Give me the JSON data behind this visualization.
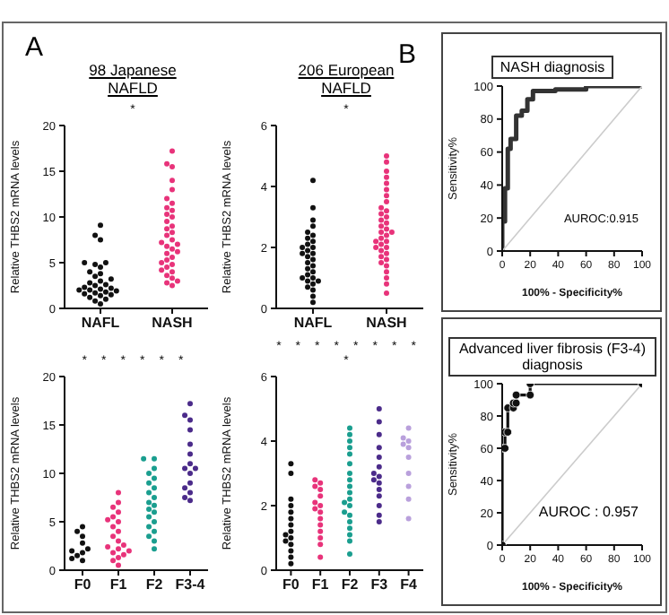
{
  "chart_data": [
    {
      "type": "scatter",
      "title": "98 Japanese NAFLD",
      "categories": [
        "NAFL",
        "NASH"
      ],
      "ylabel": "Relative THBS2 mRNA levels",
      "ylim": [
        0,
        20
      ],
      "yticks": [
        0,
        5,
        10,
        15,
        20
      ],
      "marker": "circle",
      "annotations": [
        "A",
        "*"
      ],
      "series": [
        {
          "color": "#111111",
          "x": [
            "NAFL",
            "NAFL",
            "NAFL",
            "NAFL",
            "NAFL",
            "NAFL",
            "NAFL",
            "NAFL",
            "NAFL",
            "NAFL",
            "NAFL",
            "NAFL",
            "NAFL",
            "NAFL",
            "NAFL",
            "NAFL",
            "NAFL",
            "NAFL",
            "NAFL",
            "NAFL",
            "NAFL",
            "NAFL",
            "NAFL",
            "NAFL",
            "NAFL",
            "NAFL",
            "NAFL",
            "NAFL",
            "NAFL",
            "NAFL"
          ],
          "values": [
            0.5,
            0.8,
            1,
            1.2,
            1.4,
            1.5,
            1.6,
            1.7,
            1.8,
            1.9,
            2,
            2,
            2.1,
            2.2,
            2.3,
            2.5,
            2.6,
            2.8,
            3,
            3.2,
            3.5,
            3.8,
            4,
            4.5,
            4.8,
            5,
            5,
            7.5,
            8,
            9.1
          ]
        },
        {
          "color": "#e8337a",
          "x": [
            "NASH",
            "NASH",
            "NASH",
            "NASH",
            "NASH",
            "NASH",
            "NASH",
            "NASH",
            "NASH",
            "NASH",
            "NASH",
            "NASH",
            "NASH",
            "NASH",
            "NASH",
            "NASH",
            "NASH",
            "NASH",
            "NASH",
            "NASH",
            "NASH",
            "NASH",
            "NASH",
            "NASH",
            "NASH",
            "NASH",
            "NASH",
            "NASH",
            "NASH",
            "NASH",
            "NASH",
            "NASH",
            "NASH",
            "NASH",
            "NASH"
          ],
          "values": [
            2.5,
            2.8,
            3,
            3.3,
            3.6,
            4,
            4.2,
            4.5,
            4.8,
            5,
            5.3,
            5.6,
            6,
            6.2,
            6.5,
            6.8,
            7,
            7.2,
            7.5,
            8,
            8.3,
            8.7,
            9,
            9.5,
            10,
            10.3,
            10.7,
            11,
            11.5,
            12,
            13,
            14,
            15.5,
            15.8,
            17.2
          ]
        }
      ]
    },
    {
      "type": "scatter",
      "title": "206 European NAFLD",
      "categories": [
        "NAFL",
        "NASH"
      ],
      "ylabel": "Relative THBS2 mRNA levels",
      "ylim": [
        0,
        6
      ],
      "yticks": [
        0,
        2,
        4,
        6
      ],
      "marker": "circle",
      "annotations": [
        "*"
      ],
      "series": [
        {
          "color": "#111111",
          "x": [
            "NAFL",
            "NAFL",
            "NAFL",
            "NAFL",
            "NAFL",
            "NAFL",
            "NAFL",
            "NAFL",
            "NAFL",
            "NAFL",
            "NAFL",
            "NAFL",
            "NAFL",
            "NAFL",
            "NAFL",
            "NAFL",
            "NAFL",
            "NAFL",
            "NAFL",
            "NAFL",
            "NAFL",
            "NAFL",
            "NAFL",
            "NAFL",
            "NAFL",
            "NAFL",
            "NAFL",
            "NAFL",
            "NAFL",
            "NAFL"
          ],
          "values": [
            0.2,
            0.4,
            0.6,
            0.7,
            0.8,
            0.9,
            0.9,
            1,
            1,
            1.1,
            1.2,
            1.3,
            1.4,
            1.5,
            1.6,
            1.7,
            1.8,
            1.8,
            1.9,
            2,
            2,
            2.1,
            2.2,
            2.3,
            2.4,
            2.5,
            2.7,
            2.9,
            3.3,
            4.2
          ]
        },
        {
          "color": "#e8337a",
          "x": [
            "NASH",
            "NASH",
            "NASH",
            "NASH",
            "NASH",
            "NASH",
            "NASH",
            "NASH",
            "NASH",
            "NASH",
            "NASH",
            "NASH",
            "NASH",
            "NASH",
            "NASH",
            "NASH",
            "NASH",
            "NASH",
            "NASH",
            "NASH",
            "NASH",
            "NASH",
            "NASH",
            "NASH",
            "NASH",
            "NASH",
            "NASH",
            "NASH",
            "NASH",
            "NASH",
            "NASH",
            "NASH",
            "NASH",
            "NASH",
            "NASH"
          ],
          "values": [
            0.5,
            0.8,
            1,
            1.2,
            1.4,
            1.5,
            1.6,
            1.7,
            1.8,
            1.9,
            2,
            2,
            2.1,
            2.2,
            2.2,
            2.3,
            2.4,
            2.5,
            2.5,
            2.6,
            2.7,
            2.8,
            2.9,
            3,
            3.1,
            3.2,
            3.3,
            3.5,
            3.7,
            3.9,
            4.1,
            4.3,
            4.5,
            4.8,
            5
          ]
        }
      ]
    },
    {
      "type": "scatter",
      "categories": [
        "F0",
        "F1",
        "F2",
        "F3-4"
      ],
      "ylabel": "Relative THBS2 mRNA levels",
      "ylim": [
        0,
        20
      ],
      "yticks": [
        0,
        5,
        10,
        15,
        20
      ],
      "marker": "circle",
      "annotations": [
        "*",
        "*",
        "*",
        "*",
        "*",
        "*"
      ],
      "series": [
        {
          "color": "#111111",
          "x": [
            "F0",
            "F0",
            "F0",
            "F0",
            "F0",
            "F0",
            "F0",
            "F0",
            "F0",
            "F0"
          ],
          "values": [
            1,
            1.2,
            1.5,
            1.8,
            2,
            2.2,
            2.8,
            3.5,
            4,
            4.5
          ]
        },
        {
          "color": "#e8337a",
          "x": [
            "F1",
            "F1",
            "F1",
            "F1",
            "F1",
            "F1",
            "F1",
            "F1",
            "F1",
            "F1",
            "F1",
            "F1",
            "F1",
            "F1",
            "F1",
            "F1",
            "F1",
            "F1",
            "F1",
            "F1"
          ],
          "values": [
            0.5,
            1,
            1.3,
            1.6,
            1.8,
            2,
            2.2,
            2.4,
            2.6,
            3,
            3.5,
            4,
            4.5,
            5,
            5.2,
            5.5,
            6,
            6.5,
            7,
            8
          ]
        },
        {
          "color": "#1a9e8f",
          "x": [
            "F2",
            "F2",
            "F2",
            "F2",
            "F2",
            "F2",
            "F2",
            "F2",
            "F2",
            "F2",
            "F2",
            "F2",
            "F2",
            "F2",
            "F2",
            "F2",
            "F2",
            "F2",
            "F2",
            "F2"
          ],
          "values": [
            2.2,
            3,
            3.5,
            4,
            4.5,
            5,
            5.5,
            6,
            6.3,
            6.7,
            7,
            7.5,
            8,
            8.5,
            9,
            9.5,
            10,
            10.5,
            11.5,
            11.5
          ]
        },
        {
          "color": "#4b2b8a",
          "x": [
            "F3-4",
            "F3-4",
            "F3-4",
            "F3-4",
            "F3-4",
            "F3-4",
            "F3-4",
            "F3-4",
            "F3-4",
            "F3-4",
            "F3-4",
            "F3-4",
            "F3-4",
            "F3-4",
            "F3-4"
          ],
          "values": [
            7.2,
            7.5,
            8,
            8.5,
            9,
            10,
            10.5,
            10.5,
            11,
            12,
            13,
            14.5,
            15.5,
            16,
            17.2
          ]
        }
      ]
    },
    {
      "type": "scatter",
      "categories": [
        "F0",
        "F1",
        "F2",
        "F3",
        "F4"
      ],
      "ylabel": "Relative THBS2 mRNA levels",
      "ylim": [
        0,
        6
      ],
      "yticks": [
        0,
        2,
        4,
        6
      ],
      "marker": "circle",
      "annotations": [
        "*",
        "*",
        "*",
        "*",
        "*",
        "*",
        "*",
        "*",
        "*"
      ],
      "series": [
        {
          "color": "#111111",
          "x": [
            "F0",
            "F0",
            "F0",
            "F0",
            "F0",
            "F0",
            "F0",
            "F0",
            "F0",
            "F0",
            "F0",
            "F0",
            "F0",
            "F0",
            "F0"
          ],
          "values": [
            0.2,
            0.4,
            0.6,
            0.8,
            0.9,
            1,
            1.1,
            1.2,
            1.4,
            1.6,
            1.8,
            2,
            2.2,
            3,
            3.3
          ]
        },
        {
          "color": "#e8337a",
          "x": [
            "F1",
            "F1",
            "F1",
            "F1",
            "F1",
            "F1",
            "F1",
            "F1",
            "F1",
            "F1",
            "F1",
            "F1",
            "F1",
            "F1",
            "F1"
          ],
          "values": [
            0.4,
            0.8,
            1,
            1.2,
            1.4,
            1.6,
            1.8,
            1.9,
            2,
            2.1,
            2.3,
            2.5,
            2.6,
            2.7,
            2.8
          ]
        },
        {
          "color": "#1a9e8f",
          "x": [
            "F2",
            "F2",
            "F2",
            "F2",
            "F2",
            "F2",
            "F2",
            "F2",
            "F2",
            "F2",
            "F2",
            "F2",
            "F2",
            "F2",
            "F2",
            "F2",
            "F2",
            "F2",
            "F2",
            "F2"
          ],
          "values": [
            0.5,
            0.9,
            1.1,
            1.3,
            1.5,
            1.7,
            1.8,
            2,
            2.1,
            2.2,
            2.4,
            2.6,
            2.8,
            3,
            3.3,
            3.6,
            3.8,
            4,
            4.2,
            4.4
          ]
        },
        {
          "color": "#4b2b8a",
          "x": [
            "F3",
            "F3",
            "F3",
            "F3",
            "F3",
            "F3",
            "F3",
            "F3",
            "F3",
            "F3",
            "F3",
            "F3",
            "F3",
            "F3",
            "F3"
          ],
          "values": [
            1.5,
            1.7,
            2,
            2.3,
            2.5,
            2.7,
            2.8,
            2.9,
            3,
            3.2,
            3.5,
            3.8,
            4.2,
            4.6,
            5
          ]
        },
        {
          "color": "#b9a0dc",
          "x": [
            "F4",
            "F4",
            "F4",
            "F4",
            "F4",
            "F4",
            "F4",
            "F4",
            "F4",
            "F4"
          ],
          "values": [
            1.6,
            2.2,
            2.6,
            3,
            3.5,
            3.8,
            3.9,
            4,
            4.1,
            4.4
          ]
        }
      ]
    },
    {
      "type": "line",
      "title": "NASH diagnosis",
      "xlabel": "100% - Specificity%",
      "ylabel": "Sensitivity%",
      "xlim": [
        0,
        100
      ],
      "ylim": [
        0,
        100
      ],
      "xticks": [
        0,
        20,
        40,
        60,
        80,
        100
      ],
      "yticks": [
        0,
        20,
        40,
        60,
        80,
        100
      ],
      "annotations": [
        "B",
        "AUROC:0.915"
      ],
      "series": [
        {
          "color": "#333333",
          "x": [
            0,
            0,
            2,
            2,
            4,
            4,
            6,
            6,
            10,
            10,
            14,
            14,
            18,
            18,
            22,
            22,
            38,
            38,
            60,
            60,
            100
          ],
          "values": [
            0,
            18,
            18,
            38,
            38,
            62,
            62,
            68,
            68,
            82,
            82,
            85,
            85,
            92,
            92,
            97,
            97,
            98,
            98,
            100,
            100
          ]
        },
        {
          "color": "#cccccc",
          "x": [
            0,
            100
          ],
          "values": [
            0,
            100
          ]
        }
      ]
    },
    {
      "type": "line",
      "title": "Advanced liver fibrosis (F3-4) diagnosis",
      "xlabel": "100% - Specificity%",
      "ylabel": "Sensitivity%",
      "xlim": [
        0,
        100
      ],
      "ylim": [
        0,
        100
      ],
      "xticks": [
        0,
        20,
        40,
        60,
        80,
        100
      ],
      "yticks": [
        0,
        20,
        40,
        60,
        80,
        100
      ],
      "annotations": [
        "AUROC : 0.957"
      ],
      "series": [
        {
          "color": "#111111",
          "marker": "circle",
          "x": [
            0,
            0,
            2,
            2,
            4,
            4,
            8,
            8,
            10,
            10,
            20,
            20,
            100
          ],
          "values": [
            0,
            60,
            60,
            70,
            70,
            85,
            85,
            88,
            88,
            93,
            93,
            100,
            100
          ]
        },
        {
          "color": "#cccccc",
          "x": [
            0,
            100
          ],
          "values": [
            0,
            100
          ]
        }
      ]
    }
  ]
}
